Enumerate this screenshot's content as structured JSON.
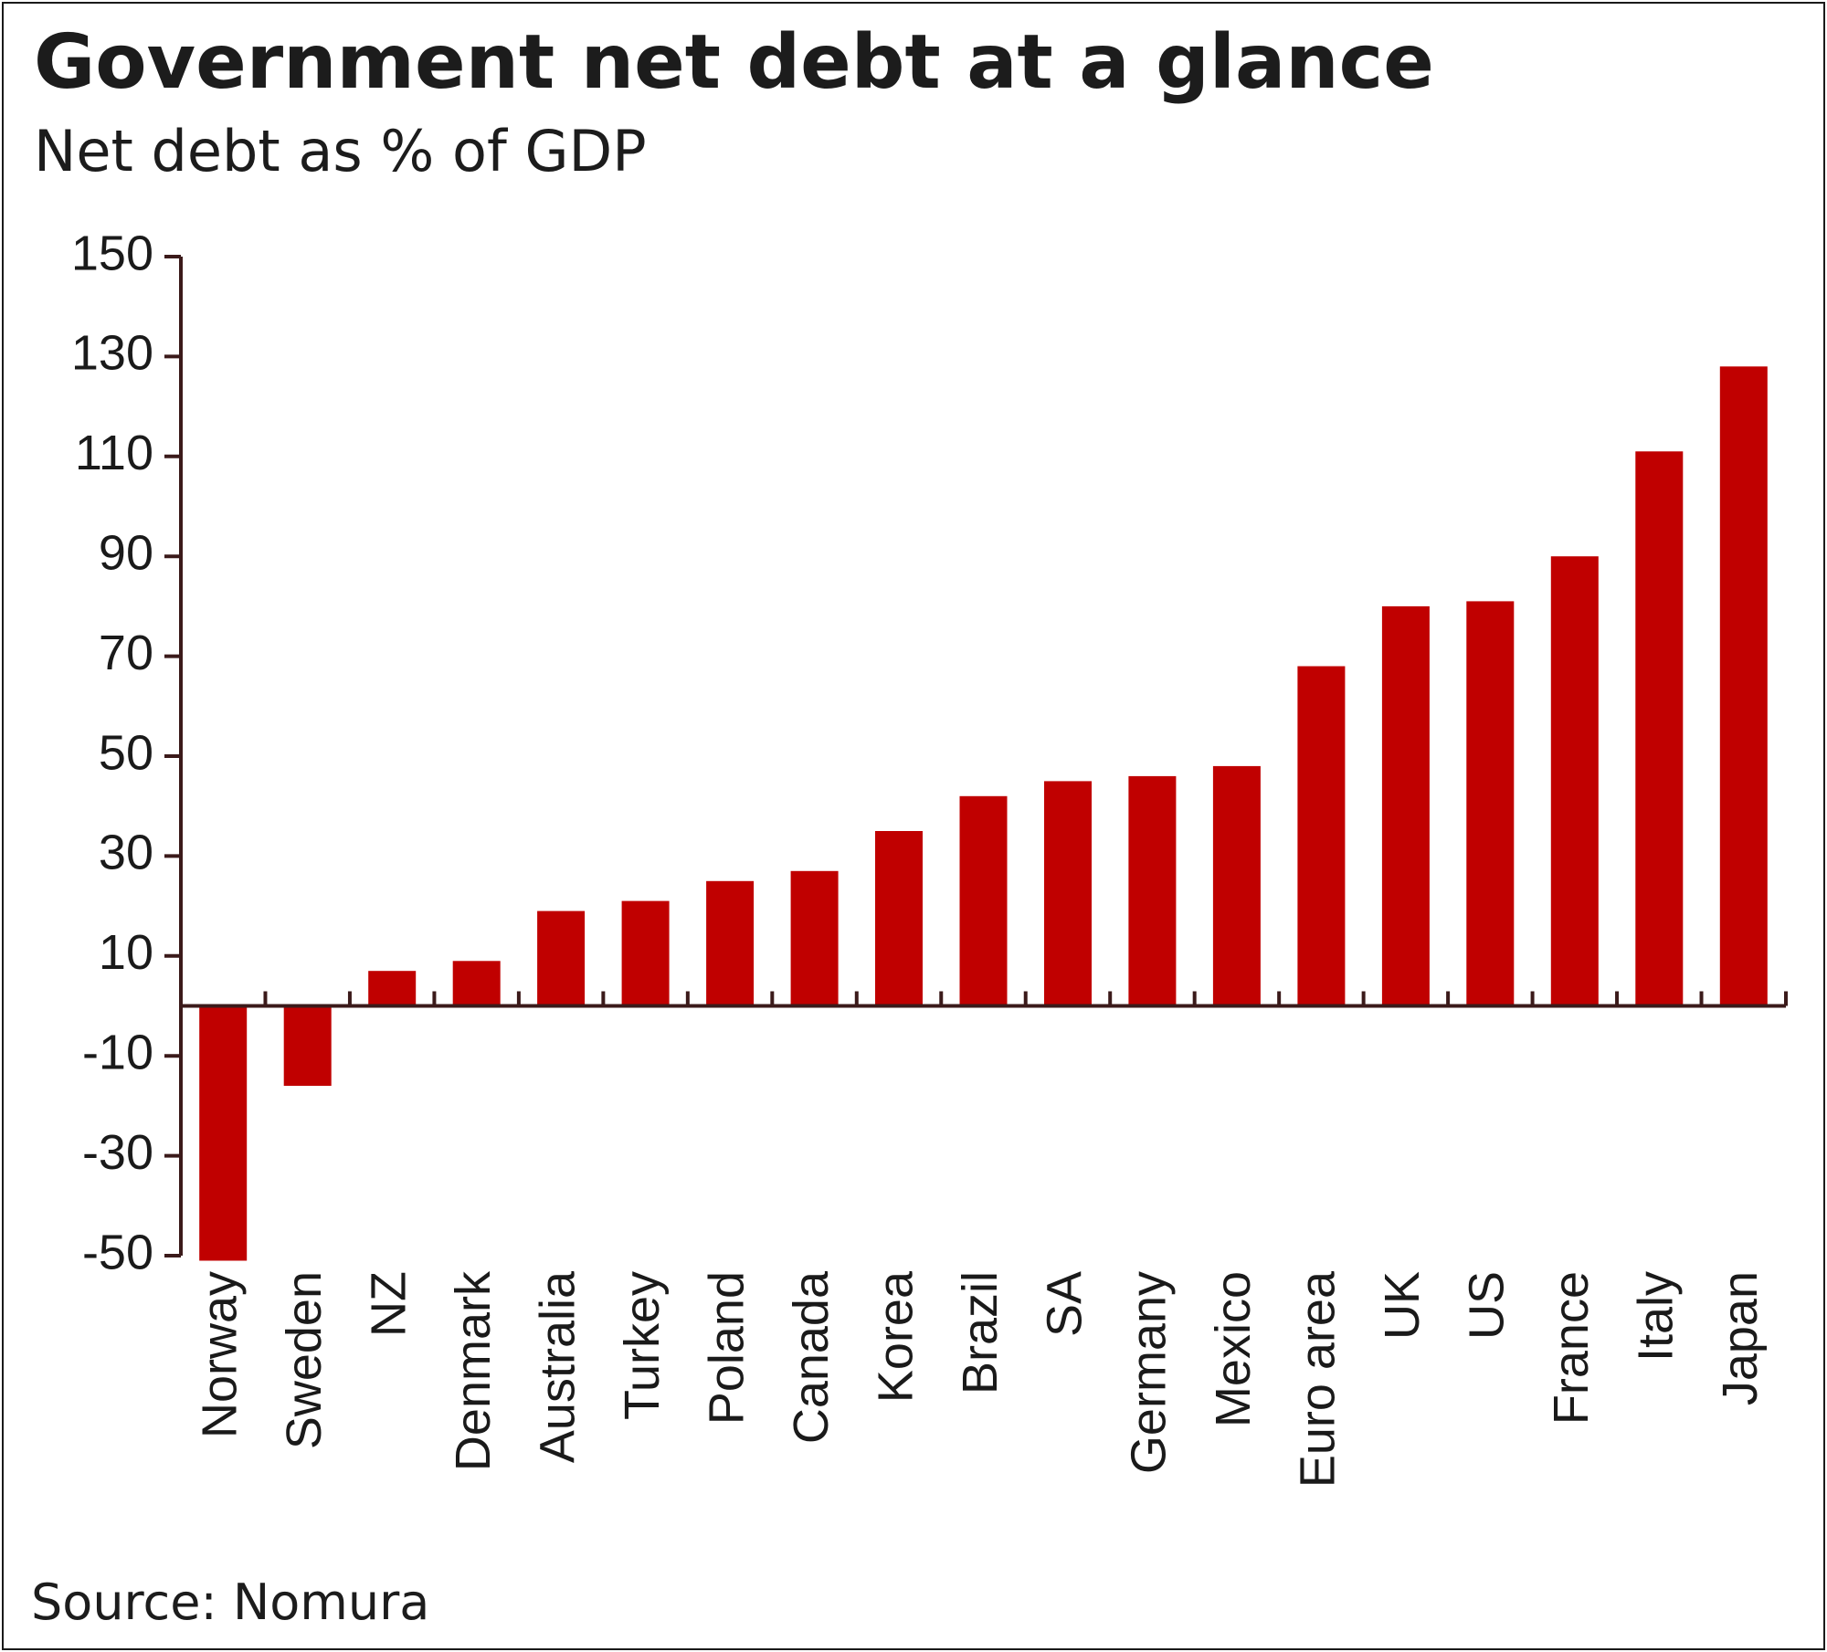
{
  "colors": {
    "bar": "#c00000",
    "axis": "#3b1a1a",
    "text": "#1a1a1a"
  },
  "chart_data": {
    "type": "bar",
    "title": "Government net debt at a glance",
    "subtitle": "Net debt as % of GDP",
    "source": "Source: Nomura",
    "xlabel": "",
    "ylabel": "",
    "ylim": [
      -50,
      150
    ],
    "yticks": [
      -50,
      -30,
      -10,
      10,
      30,
      50,
      70,
      90,
      110,
      130,
      150
    ],
    "grid": false,
    "categories": [
      "Norway",
      "Sweden",
      "NZ",
      "Denmark",
      "Australia",
      "Turkey",
      "Poland",
      "Canada",
      "Korea",
      "Brazil",
      "SA",
      "Germany",
      "Mexico",
      "Euro area",
      "UK",
      "US",
      "France",
      "Italy",
      "Japan"
    ],
    "values": [
      -51,
      -16,
      7,
      9,
      19,
      21,
      25,
      27,
      35,
      42,
      45,
      46,
      48,
      68,
      80,
      81,
      90,
      111,
      128
    ]
  }
}
